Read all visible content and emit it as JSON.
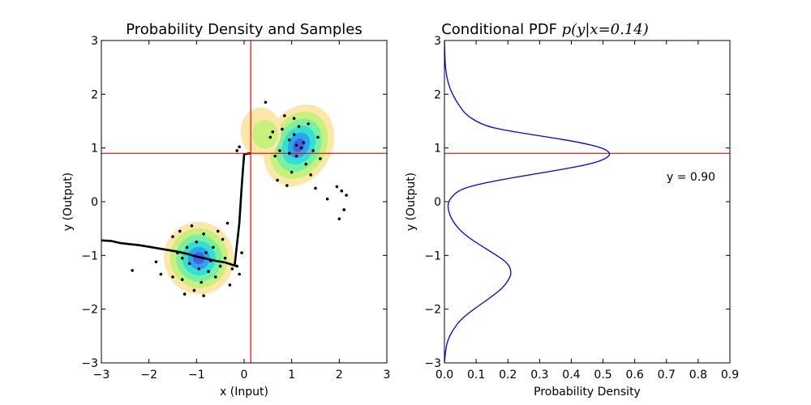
{
  "chart_data": [
    {
      "type": "contour",
      "title": "Probability Density and Samples",
      "xlabel": "x (Input)",
      "ylabel": "y (Output)",
      "xlim": [
        -3,
        3
      ],
      "ylim": [
        -3,
        3
      ],
      "xticks": [
        "−3",
        "−2",
        "−1",
        "0",
        "1",
        "2",
        "3"
      ],
      "yticks": [
        "−3",
        "−2",
        "−1",
        "0",
        "1",
        "2",
        "3"
      ],
      "colors": {
        "levels": [
          "#fde7a8",
          "#c8f07c",
          "#78f2a0",
          "#34e0d6",
          "#2aa6ef",
          "#3d63e6"
        ],
        "crosshair": "#ff0000",
        "samples": "#000000",
        "mean_curve": "#000000"
      },
      "density_components": [
        {
          "mean_x": -0.95,
          "mean_y": -1.05,
          "spread_x": 0.32,
          "spread_y": 0.28,
          "weight": 0.45
        },
        {
          "mean_x": 1.15,
          "mean_y": 1.05,
          "spread_x": 0.3,
          "spread_y": 0.33,
          "weight": 0.45
        }
      ],
      "crosshair": {
        "x": 0.14,
        "y": 0.9
      },
      "mean_curve": {
        "x": [
          -3.0,
          -2.8,
          -2.6,
          -2.4,
          -2.2,
          -2.0,
          -1.8,
          -1.6,
          -1.4,
          -1.2,
          -1.0,
          -0.8,
          -0.6,
          -0.4,
          -0.3,
          -0.2,
          -0.1,
          -0.05,
          0.0,
          0.05,
          0.1,
          0.14
        ],
        "y": [
          -0.72,
          -0.73,
          -0.77,
          -0.79,
          -0.81,
          -0.84,
          -0.87,
          -0.9,
          -0.93,
          -0.97,
          -1.02,
          -1.06,
          -1.1,
          -1.13,
          -1.16,
          -1.19,
          -0.4,
          0.3,
          0.88,
          0.89,
          0.9,
          0.9
        ]
      },
      "samples": [
        [
          -2.35,
          -1.28
        ],
        [
          -1.85,
          -1.12
        ],
        [
          -1.75,
          -1.35
        ],
        [
          -1.5,
          -0.65
        ],
        [
          -1.35,
          -0.55
        ],
        [
          -1.3,
          -1.45
        ],
        [
          -1.25,
          -1.72
        ],
        [
          -1.2,
          -0.85
        ],
        [
          -1.15,
          -1.15
        ],
        [
          -1.1,
          -0.45
        ],
        [
          -1.05,
          -1.65
        ],
        [
          -1.0,
          -0.75
        ],
        [
          -0.95,
          -1.25
        ],
        [
          -0.9,
          -1.5
        ],
        [
          -0.85,
          -0.6
        ],
        [
          -0.8,
          -0.95
        ],
        [
          -0.75,
          -1.3
        ],
        [
          -0.7,
          -1.1
        ],
        [
          -0.65,
          -0.85
        ],
        [
          -0.6,
          -1.4
        ],
        [
          -0.55,
          -0.55
        ],
        [
          -0.5,
          -1.2
        ],
        [
          -0.45,
          -0.7
        ],
        [
          -0.4,
          -1.05
        ],
        [
          -0.35,
          -0.4
        ],
        [
          -0.3,
          -1.55
        ],
        [
          -0.25,
          -1.25
        ],
        [
          -1.4,
          -0.95
        ],
        [
          -1.3,
          -1.05
        ],
        [
          -0.85,
          -1.75
        ],
        [
          -1.5,
          -1.4
        ],
        [
          -0.15,
          -1.2
        ],
        [
          -0.1,
          -1.35
        ],
        [
          -0.05,
          -0.95
        ],
        [
          -0.15,
          0.95
        ],
        [
          -0.1,
          1.02
        ],
        [
          0.45,
          1.85
        ],
        [
          0.55,
          1.2
        ],
        [
          0.6,
          1.3
        ],
        [
          0.7,
          0.4
        ],
        [
          0.75,
          0.95
        ],
        [
          0.8,
          1.35
        ],
        [
          0.85,
          1.6
        ],
        [
          0.9,
          0.3
        ],
        [
          0.95,
          1.15
        ],
        [
          1.0,
          0.55
        ],
        [
          1.05,
          1.25
        ],
        [
          1.1,
          0.85
        ],
        [
          1.15,
          1.4
        ],
        [
          1.2,
          1.0
        ],
        [
          1.25,
          1.1
        ],
        [
          1.3,
          0.7
        ],
        [
          1.35,
          1.45
        ],
        [
          1.4,
          0.5
        ],
        [
          1.45,
          0.95
        ],
        [
          1.5,
          0.25
        ],
        [
          1.55,
          1.2
        ],
        [
          1.6,
          0.8
        ],
        [
          1.75,
          0.05
        ],
        [
          1.95,
          0.28
        ],
        [
          2.0,
          -0.32
        ],
        [
          2.05,
          0.2
        ],
        [
          2.1,
          -0.15
        ],
        [
          2.15,
          0.12
        ],
        [
          0.95,
          0.9
        ],
        [
          1.1,
          1.05
        ],
        [
          0.65,
          0.85
        ],
        [
          1.05,
          1.55
        ]
      ]
    },
    {
      "type": "line",
      "title": "Conditional PDF",
      "title_math": "p(y|x=0.14)",
      "xlabel": "Probability Density",
      "ylabel": "y (Output)",
      "xlim": [
        0.0,
        0.9
      ],
      "ylim": [
        -3,
        3
      ],
      "xticks": [
        "0.0",
        "0.1",
        "0.2",
        "0.3",
        "0.4",
        "0.5",
        "0.6",
        "0.7",
        "0.8",
        "0.9"
      ],
      "yticks": [
        "−3",
        "−2",
        "−1",
        "0",
        "1",
        "2",
        "3"
      ],
      "annotation": "y = 0.90",
      "hline_y": 0.9,
      "colors": {
        "curve": "#0000ff",
        "hline": "#ff0000"
      },
      "series": [
        {
          "y": [
            -3.0,
            -2.8,
            -2.6,
            -2.4,
            -2.2,
            -2.0,
            -1.8,
            -1.6,
            -1.4,
            -1.3,
            -1.2,
            -1.1,
            -1.0,
            -0.8,
            -0.6,
            -0.4,
            -0.2,
            0.0,
            0.2,
            0.3,
            0.4,
            0.5,
            0.6,
            0.7,
            0.8,
            0.9,
            1.0,
            1.1,
            1.2,
            1.3,
            1.4,
            1.6,
            1.8,
            2.0,
            2.2,
            2.4,
            2.6,
            2.8,
            3.0
          ],
          "x": [
            0.0,
            0.003,
            0.009,
            0.025,
            0.05,
            0.092,
            0.142,
            0.185,
            0.208,
            0.21,
            0.205,
            0.19,
            0.165,
            0.11,
            0.06,
            0.03,
            0.013,
            0.01,
            0.04,
            0.09,
            0.17,
            0.27,
            0.37,
            0.46,
            0.51,
            0.525,
            0.5,
            0.43,
            0.33,
            0.22,
            0.13,
            0.07,
            0.045,
            0.025,
            0.012,
            0.005,
            0.002,
            0.001,
            0.0
          ]
        }
      ]
    }
  ]
}
